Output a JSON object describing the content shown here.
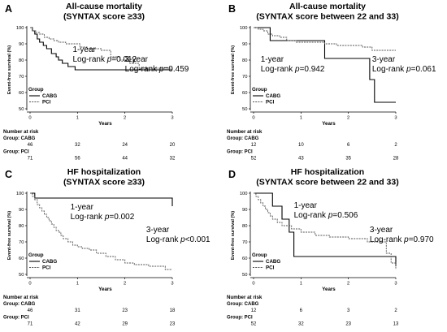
{
  "chart_data": [
    {
      "type": "line",
      "panel": "A",
      "title": [
        "All-cause mortality",
        "(SYNTAX score ≥33)"
      ],
      "xlabel": "Years",
      "ylabel": "Event-free survival (%)",
      "xlim": [
        0,
        3
      ],
      "ylim": [
        50,
        100
      ],
      "xticks": [
        0,
        1,
        2,
        3
      ],
      "yticks": [
        50,
        60,
        70,
        80,
        90,
        100
      ],
      "legend": {
        "title": "Group",
        "position": "bottom-left",
        "items": [
          "CABG",
          "PCI"
        ]
      },
      "annotations": [
        {
          "x": 0.9,
          "y": 85,
          "lines": [
            "1-year",
            "Log-rank p=0.012"
          ]
        },
        {
          "x": 2.0,
          "y": 79,
          "lines": [
            "3-year",
            "Log-rank p=0.459"
          ]
        }
      ],
      "series": [
        {
          "name": "CABG",
          "style": "solid",
          "x": [
            0,
            0.05,
            0.1,
            0.15,
            0.2,
            0.28,
            0.35,
            0.45,
            0.55,
            0.6,
            0.68,
            0.8,
            0.95,
            1.3,
            1.7,
            3.0
          ],
          "y": [
            100,
            98,
            96,
            93,
            91,
            89,
            87,
            84,
            82,
            80,
            78,
            76,
            74,
            74,
            74,
            74
          ]
        },
        {
          "name": "PCI",
          "style": "dashed",
          "x": [
            0,
            0.05,
            0.12,
            0.2,
            0.3,
            0.4,
            0.5,
            0.6,
            0.75,
            0.9,
            1.05,
            1.2,
            1.5,
            1.7,
            1.9,
            2.1,
            2.3,
            3.0
          ],
          "y": [
            100,
            98,
            97,
            96,
            94,
            93,
            92,
            91,
            90,
            90,
            88,
            87,
            86,
            82,
            80,
            78,
            75,
            75
          ]
        }
      ],
      "risk_table": {
        "header": "Number at risk",
        "groups": [
          {
            "label": "Group: CABG",
            "values": [
              46,
              32,
              24,
              20
            ]
          },
          {
            "label": "Group: PCI",
            "values": [
              71,
              56,
              44,
              32
            ]
          }
        ]
      }
    },
    {
      "type": "line",
      "panel": "B",
      "title": [
        "All-cause mortality",
        "(SYNTAX score between 22 and 33)"
      ],
      "xlabel": "Years",
      "ylabel": "Event-free survival (%)",
      "xlim": [
        0,
        3
      ],
      "ylim": [
        50,
        100
      ],
      "xticks": [
        0,
        1,
        2,
        3
      ],
      "yticks": [
        50,
        60,
        70,
        80,
        90,
        100
      ],
      "legend": {
        "title": "Group",
        "position": "bottom-left",
        "items": [
          "CABG",
          "PCI"
        ]
      },
      "annotations": [
        {
          "x": 0.15,
          "y": 79,
          "lines": [
            "1-year",
            "Log-rank p=0.942"
          ]
        },
        {
          "x": 2.5,
          "y": 79,
          "lines": [
            "3-year",
            "Log-rank p=0.061"
          ]
        }
      ],
      "series": [
        {
          "name": "CABG",
          "style": "solid",
          "x": [
            0,
            0.35,
            0.55,
            1.5,
            2.45,
            2.55,
            3.0
          ],
          "y": [
            100,
            92,
            92,
            81,
            68,
            54,
            54
          ]
        },
        {
          "name": "PCI",
          "style": "dashed",
          "x": [
            0,
            0.1,
            0.2,
            0.3,
            0.4,
            0.55,
            0.7,
            0.9,
            1.2,
            1.5,
            1.75,
            2.0,
            2.3,
            2.5,
            3.0
          ],
          "y": [
            100,
            99,
            98,
            96,
            95,
            94,
            92,
            91,
            91,
            90,
            89,
            89,
            88,
            86,
            86
          ]
        }
      ],
      "risk_table": {
        "header": "Number at risk",
        "groups": [
          {
            "label": "Group: CABG",
            "values": [
              12,
              10,
              6,
              2
            ]
          },
          {
            "label": "Group: PCI",
            "values": [
              52,
              43,
              35,
              28
            ]
          }
        ]
      }
    },
    {
      "type": "line",
      "panel": "C",
      "title": [
        "HF hospitalization",
        "(SYNTAX score ≥33)"
      ],
      "xlabel": "Years",
      "ylabel": "Event-free survival (%)",
      "xlim": [
        0,
        3
      ],
      "ylim": [
        50,
        100
      ],
      "xticks": [
        0,
        1,
        2,
        3
      ],
      "yticks": [
        50,
        60,
        70,
        80,
        90,
        100
      ],
      "legend": {
        "title": "Group",
        "position": "bottom-left",
        "items": [
          "CABG",
          "PCI"
        ]
      },
      "annotations": [
        {
          "x": 0.85,
          "y": 90,
          "lines": [
            "1-year",
            "Log-rank p=0.002"
          ]
        },
        {
          "x": 2.45,
          "y": 76,
          "lines": [
            "3-year",
            "Log-rank p<0.001"
          ]
        }
      ],
      "series": [
        {
          "name": "CABG",
          "style": "solid",
          "x": [
            0,
            0.05,
            0.1,
            2.9,
            3.0
          ],
          "y": [
            100,
            100,
            97,
            97,
            92
          ]
        },
        {
          "name": "PCI",
          "style": "dashed",
          "x": [
            0,
            0.05,
            0.1,
            0.15,
            0.2,
            0.25,
            0.3,
            0.35,
            0.4,
            0.45,
            0.5,
            0.55,
            0.6,
            0.65,
            0.7,
            0.8,
            0.9,
            1.0,
            1.1,
            1.25,
            1.4,
            1.6,
            1.8,
            2.0,
            2.2,
            2.5,
            2.85,
            3.0
          ],
          "y": [
            100,
            98,
            96,
            93,
            91,
            89,
            87,
            85,
            83,
            81,
            79,
            77,
            76,
            74,
            72,
            70,
            68,
            67,
            66,
            65,
            63,
            61,
            59,
            57,
            56,
            55,
            53,
            53
          ]
        }
      ],
      "risk_table": {
        "header": "Number at risk",
        "groups": [
          {
            "label": "Group: CABG",
            "values": [
              46,
              31,
              23,
              18
            ]
          },
          {
            "label": "Group: PCI",
            "values": [
              71,
              42,
              29,
              23
            ]
          }
        ]
      }
    },
    {
      "type": "line",
      "panel": "D",
      "title": [
        "HF hospitalization",
        "(SYNTAX score between 22 and 33)"
      ],
      "xlabel": "Years",
      "ylabel": "Event-free survival (%)",
      "xlim": [
        0,
        3
      ],
      "ylim": [
        50,
        100
      ],
      "xticks": [
        0,
        1,
        2,
        3
      ],
      "yticks": [
        50,
        60,
        70,
        80,
        90,
        100
      ],
      "legend": {
        "title": "Group",
        "position": "bottom-left",
        "items": [
          "CABG",
          "PCI"
        ]
      },
      "annotations": [
        {
          "x": 0.85,
          "y": 91,
          "lines": [
            "1-year",
            "Log-rank p=0.506"
          ]
        },
        {
          "x": 2.45,
          "y": 76,
          "lines": [
            "3-year",
            "Log-rank p=0.970"
          ]
        }
      ],
      "series": [
        {
          "name": "CABG",
          "style": "solid",
          "x": [
            0,
            0.3,
            0.4,
            0.6,
            0.75,
            0.85,
            2.85,
            3.0
          ],
          "y": [
            100,
            100,
            92,
            84,
            76,
            61,
            61,
            55
          ]
        },
        {
          "name": "PCI",
          "style": "dashed",
          "x": [
            0,
            0.05,
            0.1,
            0.15,
            0.2,
            0.25,
            0.3,
            0.35,
            0.4,
            0.5,
            0.6,
            0.8,
            1.0,
            1.3,
            1.6,
            2.0,
            2.4,
            2.8,
            2.9,
            3.0
          ],
          "y": [
            100,
            98,
            96,
            94,
            92,
            90,
            88,
            86,
            84,
            82,
            80,
            78,
            76,
            74,
            73,
            72,
            70,
            63,
            57,
            53
          ]
        }
      ],
      "risk_table": {
        "header": "Number at risk",
        "groups": [
          {
            "label": "Group: CABG",
            "values": [
              12,
              6,
              3,
              2
            ]
          },
          {
            "label": "Group: PCI",
            "values": [
              52,
              32,
              23,
              13
            ]
          }
        ]
      }
    }
  ]
}
